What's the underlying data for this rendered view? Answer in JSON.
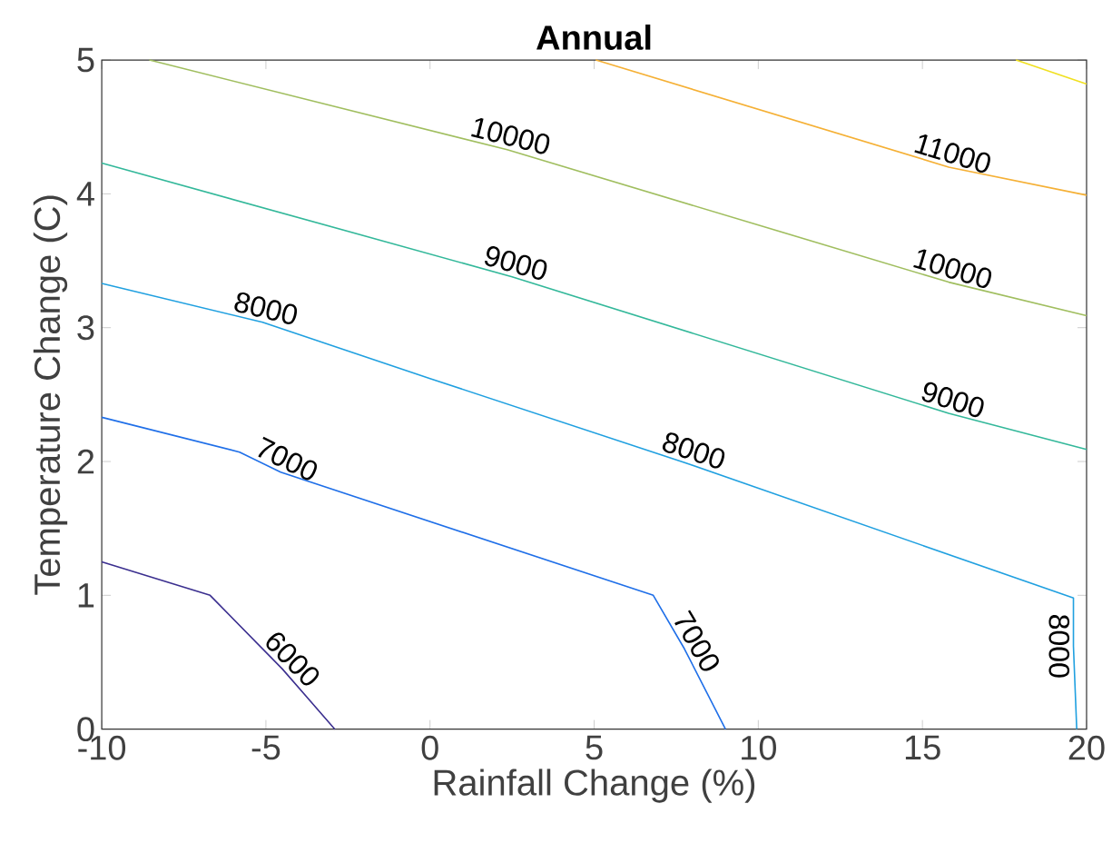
{
  "chart_data": {
    "type": "line",
    "title": "Annual",
    "xlabel": "Rainfall Change (%)",
    "ylabel": "Temperature Change (C)",
    "xlim": [
      -10,
      20
    ],
    "ylim": [
      0,
      5
    ],
    "xticks": [
      -10,
      -5,
      0,
      5,
      10,
      15,
      20
    ],
    "yticks": [
      0,
      1,
      2,
      3,
      4,
      5
    ],
    "marker": "none",
    "line_style": "solid",
    "series": [
      {
        "color": "#3b2f8f",
        "x": [
          -10,
          -6.7,
          -4.5,
          -2.9
        ],
        "values": [
          1.25,
          1.0,
          0.45,
          0
        ]
      },
      {
        "color": "#1f6fe8",
        "x": [
          -10,
          -5.8,
          -4.55,
          6.8,
          7.75,
          9.0
        ],
        "values": [
          2.33,
          2.07,
          1.92,
          1.0,
          0.6,
          0
        ]
      },
      {
        "color": "#20a0e0",
        "x": [
          -10,
          -5.1,
          0,
          7.9,
          19.6,
          19.6,
          19.7
        ],
        "values": [
          3.33,
          3.04,
          2.62,
          1.98,
          0.98,
          0.62,
          0
        ]
      },
      {
        "color": "#33b89a",
        "x": [
          -10,
          2.5,
          15.8,
          20
        ],
        "values": [
          4.23,
          3.38,
          2.36,
          2.09
        ]
      },
      {
        "color": "#a0be5f",
        "x": [
          -8.55,
          2.35,
          15.8,
          20
        ],
        "values": [
          5,
          4.33,
          3.34,
          3.09
        ]
      },
      {
        "color": "#f5b035",
        "x": [
          5.05,
          15.8,
          20
        ],
        "values": [
          5,
          4.2,
          3.99
        ]
      },
      {
        "color": "#f0e020",
        "x": [
          17.85,
          20
        ],
        "values": [
          5,
          4.82
        ]
      }
    ],
    "annotations": [
      {
        "text": "6000",
        "x": -4.5,
        "y": 0.45
      },
      {
        "text": "7000",
        "x": -4.55,
        "y": 1.92
      },
      {
        "text": "7000",
        "x": 7.75,
        "y": 0.6
      },
      {
        "text": "8000",
        "x": -5.1,
        "y": 3.04
      },
      {
        "text": "8000",
        "x": 7.9,
        "y": 1.98
      },
      {
        "text": "8000",
        "x": 19.6,
        "y": 0.62
      },
      {
        "text": "9000",
        "x": 2.5,
        "y": 3.38
      },
      {
        "text": "9000",
        "x": 15.8,
        "y": 2.36
      },
      {
        "text": "10000",
        "x": 2.35,
        "y": 4.33
      },
      {
        "text": "10000",
        "x": 15.8,
        "y": 3.34
      },
      {
        "text": "11000",
        "x": 15.8,
        "y": 4.2
      }
    ]
  }
}
